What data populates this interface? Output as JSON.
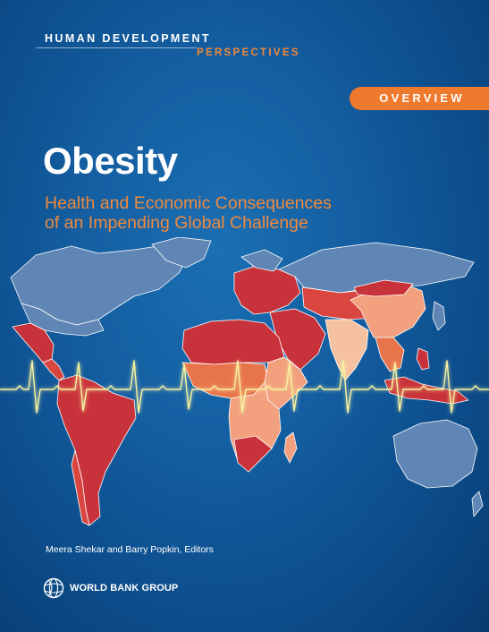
{
  "cover": {
    "series_line1": "HUMAN DEVELOPMENT",
    "series_line2": "PERSPECTIVES",
    "tab_label": "OVERVIEW",
    "title": "Obesity",
    "subtitle_line1": "Health and Economic Consequences",
    "subtitle_line2": "of an Impending Global Challenge",
    "editors": "Meera Shekar and Barry Popkin, Editors",
    "publisher": "WORLD BANK GROUP"
  },
  "colors": {
    "background": "#145fa2",
    "accent_orange": "#ee7a2e",
    "map_dark_red": "#c8323a",
    "map_red": "#d9463f",
    "map_orange": "#e8744c",
    "map_light": "#f2a07d",
    "map_palest": "#f5c1a1",
    "map_unshaded": "#5f86b4",
    "pulse_line": "#f7f2a0"
  },
  "icons": {
    "logo": "globe-logo-icon"
  }
}
